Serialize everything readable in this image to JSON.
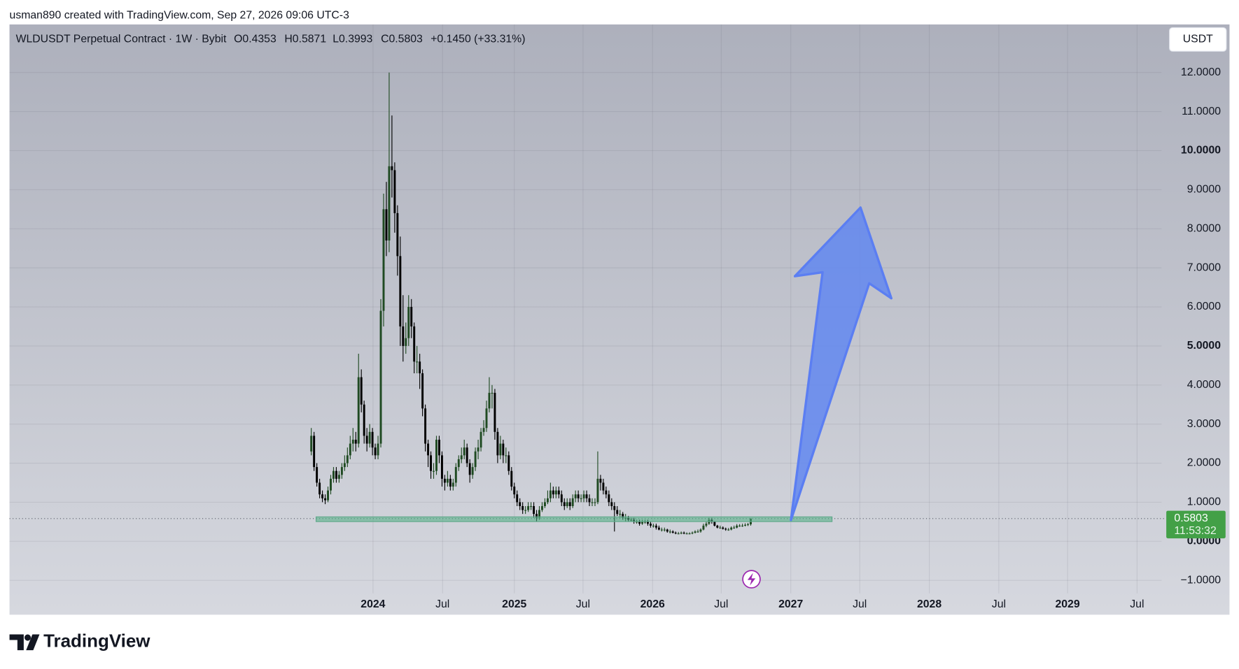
{
  "header": {
    "credit": "usman890 created with TradingView.com, Sep 27, 2026 09:06 UTC-3"
  },
  "chart_data": {
    "type": "candlestick",
    "title": "WLDUSDT Perpetual Contract · 1W · Bybit",
    "ohlc_text": [
      "O0.4353",
      "H0.5871",
      "L0.3993",
      "C0.5803"
    ],
    "change": "+0.1450 (+33.31%)",
    "currency": "USDT",
    "countdown": "11:53:32",
    "categories": [
      null,
      null,
      null,
      null,
      null,
      null,
      null,
      null,
      null,
      null,
      null,
      null,
      null,
      null,
      null,
      null,
      null,
      null,
      null,
      null,
      null,
      null,
      null,
      null,
      null,
      null,
      null,
      null,
      null,
      null,
      null,
      null,
      null,
      null,
      null,
      null,
      null,
      null,
      null,
      null,
      null,
      null,
      null,
      null,
      null,
      null,
      null,
      null,
      null,
      null,
      null,
      null,
      null,
      null,
      null,
      null,
      null,
      null,
      null,
      null,
      null,
      null,
      null,
      null,
      null,
      null,
      null,
      null,
      null,
      null,
      null,
      null,
      null,
      null,
      null,
      null,
      null,
      null,
      null,
      null,
      null,
      null,
      null,
      null,
      null,
      null,
      null,
      null,
      null,
      null,
      null,
      null,
      null,
      null,
      null,
      null,
      null,
      null,
      null,
      null,
      null,
      null,
      null,
      null,
      null,
      null,
      null,
      null,
      null,
      null,
      null,
      null,
      null,
      null,
      null,
      null,
      null,
      null,
      null,
      null,
      null,
      null,
      null,
      null,
      null,
      null,
      null,
      null,
      null,
      null,
      null,
      null,
      null,
      null,
      null,
      null,
      null,
      null,
      null,
      null,
      null,
      null,
      null,
      null,
      null,
      null,
      null,
      null,
      null,
      null,
      null,
      null,
      null,
      null,
      null,
      null,
      null,
      null,
      null
    ],
    "series": [
      {
        "up_color": "#1f4a22",
        "down_color": "#000000",
        "open": [
          2.3,
          2.7,
          1.9,
          1.5,
          1.2,
          1.1,
          1.05,
          1.3,
          1.6,
          1.8,
          1.6,
          1.7,
          1.9,
          2.0,
          2.2,
          2.5,
          2.6,
          2.5,
          4.2,
          3.5,
          2.7,
          2.5,
          2.8,
          2.4,
          2.2,
          2.5,
          5.9,
          8.5,
          7.7,
          9.6,
          9.5,
          8.4,
          7.3,
          5.5,
          5.0,
          5.2,
          6.0,
          5.5,
          4.6,
          4.6,
          4.3,
          3.4,
          2.5,
          2.2,
          1.8,
          1.8,
          2.6,
          2.2,
          1.6,
          1.5,
          1.6,
          1.4,
          1.5,
          1.9,
          2.1,
          2.2,
          2.4,
          2.0,
          1.7,
          1.9,
          2.3,
          2.4,
          2.8,
          2.9,
          3.4,
          3.8,
          3.8,
          2.8,
          2.2,
          2.5,
          2.2,
          2.2,
          1.8,
          1.4,
          1.2,
          1.0,
          0.9,
          0.8,
          0.8,
          0.9,
          0.9,
          0.7,
          0.6,
          0.8,
          0.9,
          1.0,
          1.1,
          1.3,
          1.2,
          1.3,
          1.2,
          1.0,
          0.9,
          1.0,
          0.9,
          1.1,
          1.2,
          1.1,
          1.1,
          1.2,
          1.1,
          1.0,
          1.0,
          1.0,
          1.6,
          1.5,
          1.3,
          1.2,
          1.0,
          0.9,
          0.8,
          0.7,
          0.7,
          0.6,
          0.6,
          0.55,
          0.55,
          0.5,
          0.5,
          0.45,
          0.5,
          0.5,
          0.45,
          0.4,
          0.4,
          0.35,
          0.3,
          0.3,
          0.3,
          0.25,
          0.25,
          0.22,
          0.2,
          0.2,
          0.22,
          0.2,
          0.2,
          0.2,
          0.22,
          0.25,
          0.25,
          0.3,
          0.4,
          0.45,
          0.55,
          0.5,
          0.4,
          0.35,
          0.35,
          0.32,
          0.3,
          0.3,
          0.35,
          0.35,
          0.4,
          0.4,
          0.4,
          0.42,
          0.4353
        ],
        "high": [
          2.9,
          2.8,
          2.0,
          1.6,
          1.3,
          1.2,
          1.4,
          1.7,
          1.9,
          1.9,
          1.8,
          2.0,
          2.2,
          2.4,
          2.7,
          2.9,
          2.8,
          4.8,
          4.4,
          3.6,
          2.9,
          3.0,
          2.9,
          2.5,
          2.7,
          6.2,
          8.9,
          9.2,
          12.0,
          10.9,
          9.7,
          8.6,
          7.8,
          6.3,
          5.6,
          6.3,
          6.2,
          5.6,
          5.0,
          4.8,
          4.4,
          3.5,
          2.6,
          2.3,
          2.0,
          2.7,
          2.7,
          2.3,
          1.7,
          1.8,
          1.7,
          1.6,
          2.0,
          2.2,
          2.4,
          2.6,
          2.5,
          2.1,
          2.0,
          2.4,
          2.6,
          2.9,
          3.1,
          3.6,
          4.2,
          4.0,
          3.9,
          2.9,
          2.7,
          2.6,
          2.4,
          2.3,
          1.9,
          1.5,
          1.3,
          1.1,
          1.0,
          0.9,
          1.0,
          1.0,
          1.0,
          0.8,
          0.9,
          1.0,
          1.1,
          1.3,
          1.5,
          1.4,
          1.4,
          1.4,
          1.3,
          1.1,
          1.1,
          1.1,
          1.2,
          1.3,
          1.3,
          1.2,
          1.3,
          1.3,
          1.2,
          1.1,
          1.1,
          2.3,
          1.7,
          1.6,
          1.4,
          1.3,
          1.1,
          1.0,
          0.9,
          0.8,
          0.75,
          0.7,
          0.65,
          0.6,
          0.6,
          0.55,
          0.55,
          0.55,
          0.55,
          0.55,
          0.5,
          0.45,
          0.45,
          0.4,
          0.35,
          0.35,
          0.32,
          0.3,
          0.28,
          0.25,
          0.24,
          0.25,
          0.25,
          0.23,
          0.23,
          0.25,
          0.28,
          0.3,
          0.33,
          0.45,
          0.5,
          0.6,
          0.6,
          0.52,
          0.42,
          0.4,
          0.38,
          0.35,
          0.34,
          0.38,
          0.4,
          0.44,
          0.44,
          0.45,
          0.46,
          0.47,
          0.5871
        ],
        "low": [
          2.2,
          1.8,
          1.4,
          1.1,
          1.0,
          0.95,
          1.0,
          1.2,
          1.5,
          1.5,
          1.5,
          1.6,
          1.8,
          1.9,
          2.1,
          2.3,
          2.3,
          2.4,
          3.3,
          2.5,
          2.3,
          2.4,
          2.2,
          2.1,
          2.1,
          2.4,
          5.5,
          7.3,
          7.4,
          8.8,
          7.9,
          6.8,
          5.0,
          4.6,
          4.8,
          5.0,
          5.2,
          4.3,
          4.3,
          3.9,
          3.2,
          2.3,
          1.9,
          1.6,
          1.6,
          1.7,
          2.0,
          1.4,
          1.3,
          1.4,
          1.3,
          1.3,
          1.4,
          1.8,
          2.0,
          2.1,
          1.9,
          1.5,
          1.6,
          1.8,
          2.1,
          2.3,
          2.7,
          2.8,
          3.3,
          3.4,
          2.6,
          2.0,
          2.1,
          2.0,
          2.0,
          1.7,
          1.3,
          1.1,
          0.9,
          0.8,
          0.7,
          0.7,
          0.75,
          0.8,
          0.6,
          0.5,
          0.55,
          0.75,
          0.85,
          0.95,
          1.0,
          1.1,
          1.1,
          1.1,
          0.9,
          0.8,
          0.85,
          0.8,
          0.85,
          1.0,
          1.0,
          1.0,
          1.0,
          1.0,
          0.9,
          0.9,
          0.9,
          0.95,
          1.3,
          1.2,
          1.1,
          0.9,
          0.8,
          0.25,
          0.65,
          0.6,
          0.55,
          0.5,
          0.5,
          0.5,
          0.45,
          0.45,
          0.4,
          0.42,
          0.45,
          0.4,
          0.35,
          0.35,
          0.3,
          0.28,
          0.25,
          0.25,
          0.22,
          0.2,
          0.2,
          0.18,
          0.18,
          0.18,
          0.18,
          0.18,
          0.18,
          0.18,
          0.2,
          0.22,
          0.22,
          0.28,
          0.36,
          0.42,
          0.45,
          0.38,
          0.33,
          0.32,
          0.3,
          0.27,
          0.27,
          0.28,
          0.32,
          0.33,
          0.37,
          0.37,
          0.38,
          0.39,
          0.3993
        ],
        "close": [
          2.7,
          1.9,
          1.5,
          1.2,
          1.1,
          1.05,
          1.3,
          1.6,
          1.8,
          1.6,
          1.7,
          1.9,
          2.0,
          2.2,
          2.5,
          2.6,
          2.5,
          4.2,
          3.5,
          2.7,
          2.5,
          2.8,
          2.4,
          2.2,
          2.5,
          5.9,
          8.5,
          7.7,
          9.6,
          9.5,
          8.4,
          7.3,
          5.5,
          5.0,
          5.2,
          6.0,
          5.5,
          4.6,
          4.6,
          4.3,
          3.4,
          2.5,
          2.2,
          1.8,
          1.8,
          2.6,
          2.2,
          1.6,
          1.5,
          1.6,
          1.4,
          1.5,
          1.9,
          2.1,
          2.2,
          2.4,
          2.0,
          1.7,
          1.9,
          2.3,
          2.4,
          2.8,
          2.9,
          3.4,
          3.8,
          3.8,
          2.8,
          2.2,
          2.5,
          2.2,
          2.2,
          1.8,
          1.4,
          1.2,
          1.0,
          0.9,
          0.8,
          0.8,
          0.9,
          0.9,
          0.7,
          0.6,
          0.8,
          0.9,
          1.0,
          1.1,
          1.3,
          1.2,
          1.3,
          1.2,
          1.0,
          0.9,
          1.0,
          0.9,
          1.1,
          1.2,
          1.1,
          1.1,
          1.2,
          1.1,
          1.0,
          1.0,
          1.0,
          1.6,
          1.5,
          1.3,
          1.2,
          1.0,
          0.9,
          0.8,
          0.7,
          0.7,
          0.6,
          0.6,
          0.55,
          0.55,
          0.5,
          0.5,
          0.45,
          0.5,
          0.5,
          0.45,
          0.4,
          0.4,
          0.35,
          0.3,
          0.3,
          0.3,
          0.25,
          0.25,
          0.22,
          0.2,
          0.2,
          0.22,
          0.2,
          0.2,
          0.2,
          0.22,
          0.25,
          0.25,
          0.3,
          0.4,
          0.45,
          0.55,
          0.5,
          0.4,
          0.35,
          0.35,
          0.32,
          0.3,
          0.3,
          0.35,
          0.35,
          0.4,
          0.4,
          0.4,
          0.42,
          0.4353,
          0.5803
        ]
      }
    ],
    "xlim": [
      -108.5,
      305.7
    ],
    "xticks": [
      {
        "value": 22.2,
        "label": "2024"
      },
      {
        "value": 47.2,
        "label": "Jul"
      },
      {
        "value": 73.0,
        "label": "2025"
      },
      {
        "value": 97.7,
        "label": "Jul"
      },
      {
        "value": 122.7,
        "label": "2026"
      },
      {
        "value": 147.4,
        "label": "Jul"
      },
      {
        "value": 172.4,
        "label": "2027"
      },
      {
        "value": 197.2,
        "label": "Jul"
      },
      {
        "value": 222.2,
        "label": "2028"
      },
      {
        "value": 247.2,
        "label": "Jul"
      },
      {
        "value": 271.9,
        "label": "2029"
      },
      {
        "value": 296.9,
        "label": "Jul"
      }
    ],
    "ylim": [
      -1.88,
      13.23
    ],
    "yticks": [
      {
        "value": -1,
        "label": "−1.0000"
      },
      {
        "value": 0,
        "label": "0.0000"
      },
      {
        "value": 1,
        "label": "1.0000"
      },
      {
        "value": 2,
        "label": "2.0000"
      },
      {
        "value": 3,
        "label": "3.0000"
      },
      {
        "value": 4,
        "label": "4.0000"
      },
      {
        "value": 5,
        "label": "5.0000"
      },
      {
        "value": 6,
        "label": "6.0000"
      },
      {
        "value": 7,
        "label": "7.0000"
      },
      {
        "value": 8,
        "label": "8.0000"
      },
      {
        "value": 9,
        "label": "9.0000"
      },
      {
        "value": 10,
        "label": "10.0000"
      },
      {
        "value": 11,
        "label": "11.0000"
      },
      {
        "value": 12,
        "label": "12.0000"
      }
    ],
    "grid": true,
    "price_color": "#43a047"
  },
  "footer": {
    "brand": "TradingView"
  }
}
